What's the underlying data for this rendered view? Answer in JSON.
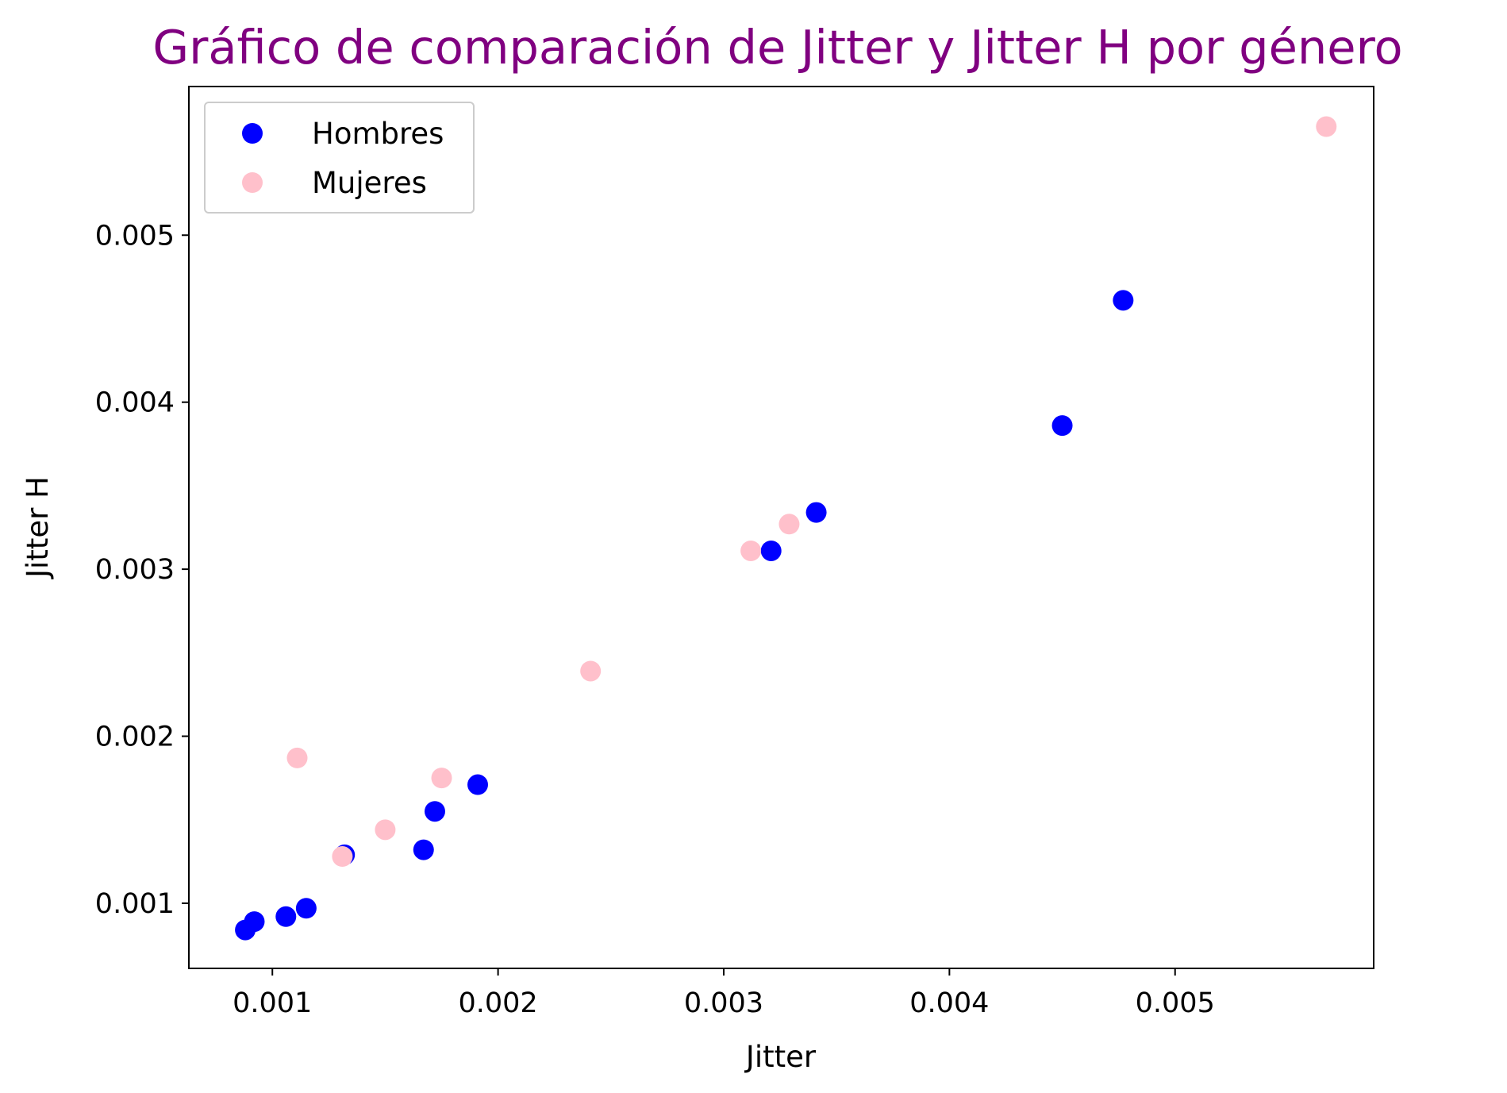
{
  "chart_data": {
    "type": "scatter",
    "title": "Gráfico de comparación de Jitter y Jitter H por género",
    "title_color": "#800080",
    "xlabel": "Jitter",
    "ylabel": "Jitter H",
    "xlim": [
      0.00063,
      0.00588
    ],
    "ylim": [
      0.00061,
      0.00589
    ],
    "xticks": [
      0.001,
      0.002,
      0.003,
      0.004,
      0.005
    ],
    "xtick_labels": [
      "0.001",
      "0.002",
      "0.003",
      "0.004",
      "0.005"
    ],
    "yticks": [
      0.001,
      0.002,
      0.003,
      0.004,
      0.005
    ],
    "ytick_labels": [
      "0.001",
      "0.002",
      "0.003",
      "0.004",
      "0.005"
    ],
    "grid": false,
    "legend_position": "top-left",
    "series": [
      {
        "name": "Hombres",
        "color": "#0000ff",
        "x": [
          0.00088,
          0.00092,
          0.00106,
          0.00115,
          0.00132,
          0.00167,
          0.00172,
          0.00191,
          0.00321,
          0.00341,
          0.0045,
          0.00477
        ],
        "y": [
          0.00084,
          0.00089,
          0.00092,
          0.00097,
          0.00129,
          0.00132,
          0.00155,
          0.00171,
          0.00311,
          0.00334,
          0.00386,
          0.00461
        ]
      },
      {
        "name": "Mujeres",
        "color": "#ffc0cb",
        "x": [
          0.00111,
          0.00131,
          0.0015,
          0.00175,
          0.00241,
          0.00312,
          0.00329,
          0.00567
        ],
        "y": [
          0.00187,
          0.00128,
          0.00144,
          0.00175,
          0.00239,
          0.00311,
          0.00327,
          0.00565
        ]
      }
    ]
  }
}
